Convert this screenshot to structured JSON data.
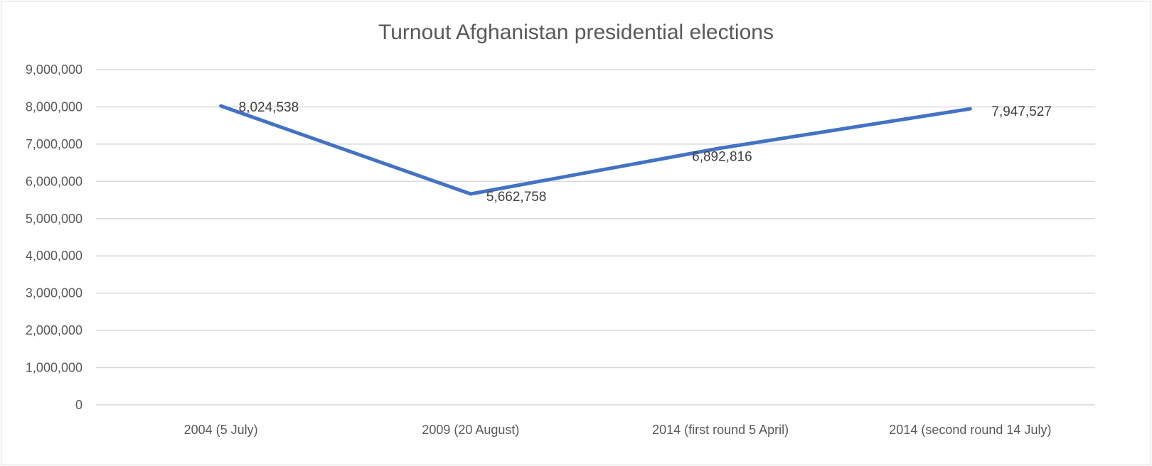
{
  "chart_data": {
    "type": "line",
    "title": "Turnout Afghanistan presidential elections",
    "xlabel": "",
    "ylabel": "",
    "categories": [
      "2004 (5 July)",
      "2009 (20 August)",
      "2014 (first round 5 April)",
      "2014 (second round 14 July)"
    ],
    "series": [
      {
        "values": [
          8024538,
          5662758,
          6892816,
          7947527
        ],
        "data_labels": [
          "8,024,538",
          "5,662,758",
          "6,892,816",
          "7,947,527"
        ],
        "color": "#4472c4"
      }
    ],
    "ylim": [
      0,
      9000000
    ],
    "yticks": [
      0,
      1000000,
      2000000,
      3000000,
      4000000,
      5000000,
      6000000,
      7000000,
      8000000,
      9000000
    ],
    "ytick_labels": [
      "0",
      "1,000,000",
      "2,000,000",
      "3,000,000",
      "4,000,000",
      "5,000,000",
      "6,000,000",
      "7,000,000",
      "8,000,000",
      "9,000,000"
    ],
    "grid": true,
    "legend": "none"
  }
}
